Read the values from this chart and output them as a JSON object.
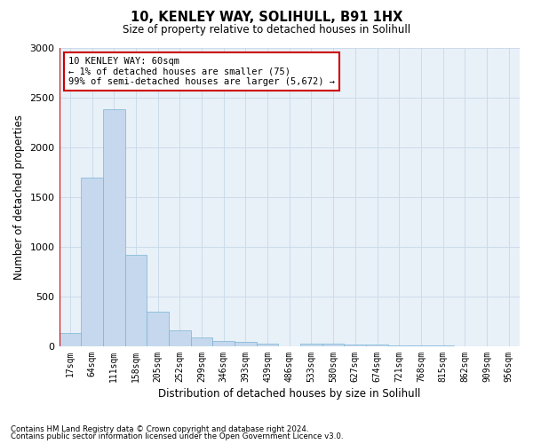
{
  "title1": "10, KENLEY WAY, SOLIHULL, B91 1HX",
  "title2": "Size of property relative to detached houses in Solihull",
  "xlabel": "Distribution of detached houses by size in Solihull",
  "ylabel": "Number of detached properties",
  "footnote1": "Contains HM Land Registry data © Crown copyright and database right 2024.",
  "footnote2": "Contains public sector information licensed under the Open Government Licence v3.0.",
  "annotation_line1": "10 KENLEY WAY: 60sqm",
  "annotation_line2": "← 1% of detached houses are smaller (75)",
  "annotation_line3": "99% of semi-detached houses are larger (5,672) →",
  "bar_color": "#c5d8ed",
  "bar_edge_color": "#7ab4d4",
  "highlight_color": "#cc0000",
  "categories": [
    "17sqm",
    "64sqm",
    "111sqm",
    "158sqm",
    "205sqm",
    "252sqm",
    "299sqm",
    "346sqm",
    "393sqm",
    "439sqm",
    "486sqm",
    "533sqm",
    "580sqm",
    "627sqm",
    "674sqm",
    "721sqm",
    "768sqm",
    "815sqm",
    "862sqm",
    "909sqm",
    "956sqm"
  ],
  "values": [
    130,
    1700,
    2380,
    920,
    350,
    160,
    85,
    50,
    40,
    30,
    0,
    30,
    30,
    20,
    15,
    10,
    8,
    5,
    3,
    2,
    2
  ],
  "ylim": [
    0,
    3000
  ],
  "yticks": [
    0,
    500,
    1000,
    1500,
    2000,
    2500,
    3000
  ],
  "background_color": "#ffffff",
  "ax_facecolor": "#e8f0f8",
  "grid_color": "#c8d8e8"
}
